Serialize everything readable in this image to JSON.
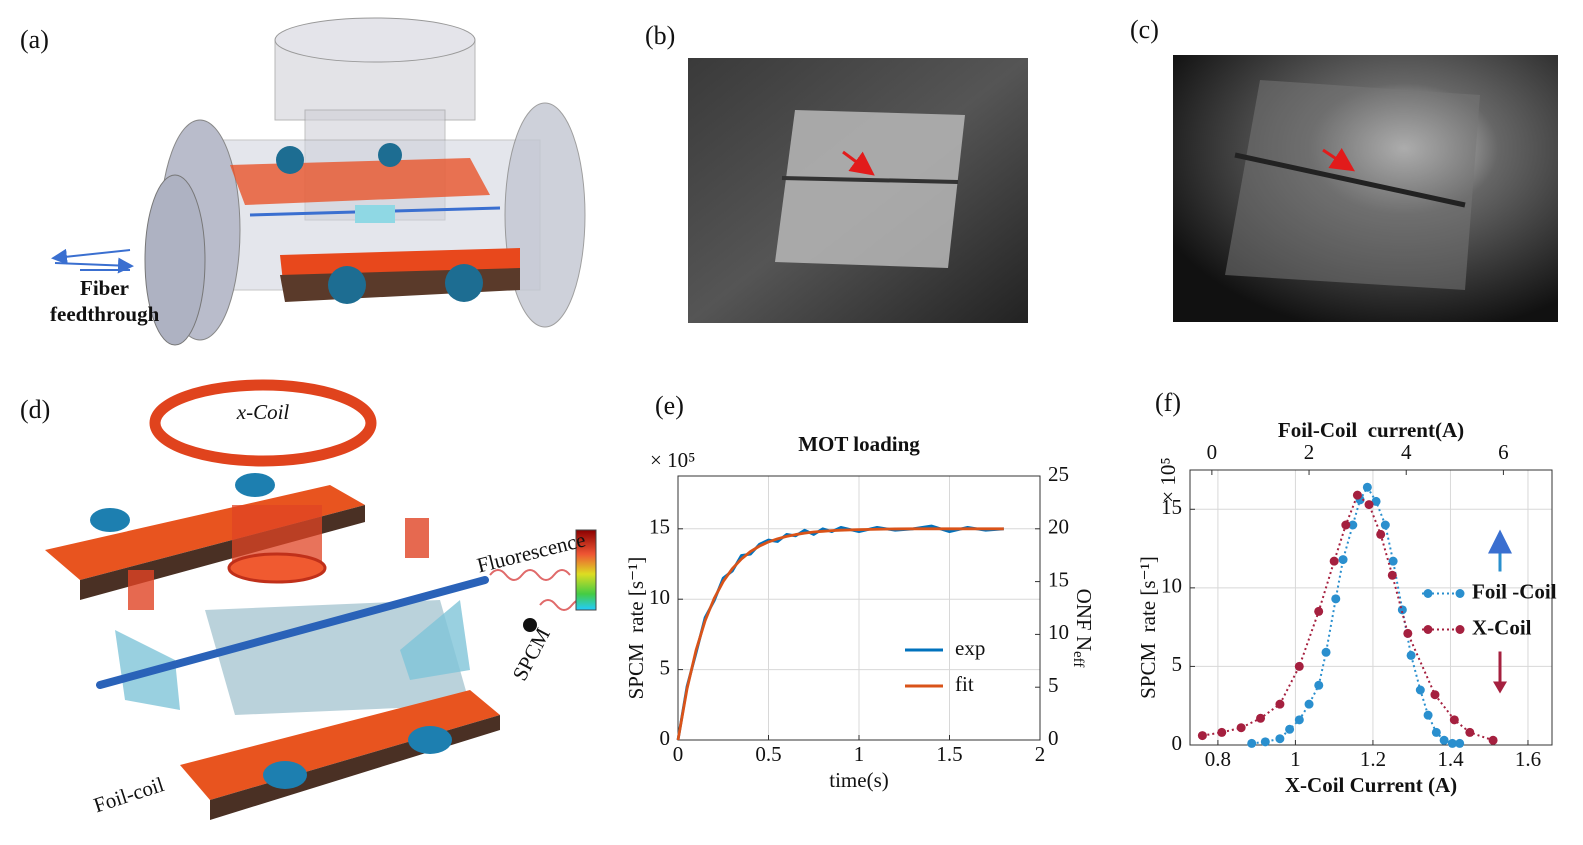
{
  "panel_labels": [
    "(a)",
    "(b)",
    "(c)",
    "(d)",
    "(e)",
    "(f)"
  ],
  "fiber_label": [
    "Fiber",
    "feedthrough"
  ],
  "coil_label": "x-Coil",
  "fluorescence_label": "Fluorescence",
  "spcm_label": "SPCM",
  "foil_label": "Foil-coil",
  "chart_data": [
    {
      "type": "line",
      "title": "MOT loading",
      "xlabel": "time(s)",
      "ylabel": "SPCM  rate [s⁻¹]",
      "multiplier": "× 10⁵",
      "y2label": "ONF N",
      "y2label_sub": "eff",
      "x": [
        0,
        0.05,
        0.1,
        0.15,
        0.2,
        0.25,
        0.3,
        0.35,
        0.4,
        0.45,
        0.5,
        0.55,
        0.6,
        0.65,
        0.7,
        0.75,
        0.8,
        0.85,
        0.9,
        1.0,
        1.1,
        1.2,
        1.3,
        1.4,
        1.5,
        1.6,
        1.7,
        1.8
      ],
      "series": [
        {
          "name": "exp",
          "color": "#0072bd",
          "values": [
            0,
            3.8,
            6.2,
            8.7,
            9.9,
            11.5,
            12.0,
            13.1,
            13.2,
            13.9,
            14.2,
            14.1,
            14.6,
            14.5,
            14.9,
            14.6,
            15.0,
            14.8,
            15.1,
            14.8,
            15.1,
            14.9,
            15.0,
            15.2,
            14.8,
            15.1,
            14.9,
            15.0
          ]
        },
        {
          "name": "fit",
          "color": "#d95319",
          "values": [
            0,
            3.64,
            6.39,
            8.48,
            10.06,
            11.26,
            12.17,
            12.85,
            13.38,
            13.77,
            14.07,
            14.29,
            14.46,
            14.59,
            14.69,
            14.77,
            14.82,
            14.87,
            14.9,
            14.94,
            14.97,
            14.99,
            15.0,
            15.0,
            15.0,
            15.0,
            15.0,
            15.0
          ]
        }
      ],
      "xlim": [
        0,
        2
      ],
      "xticks": [
        0,
        0.5,
        1,
        1.5,
        2
      ],
      "ylim": [
        0,
        18.75
      ],
      "yticks": [
        0,
        5,
        10,
        15
      ],
      "y2lim": [
        0,
        25
      ],
      "y2ticks": [
        0,
        5,
        10,
        15,
        20,
        25
      ],
      "grid": true,
      "legend": "lower right"
    },
    {
      "type": "line",
      "xlabel": "X-Coil Current (A)",
      "x2label": "Foil-Coil  current(A)",
      "ylabel": "SPCM  rate [s⁻¹]",
      "multiplier": "× 10⁵",
      "series": [
        {
          "name": "Foil -Coil",
          "color": "#2a8fce",
          "axis": "x2",
          "x": [
            0.82,
            1.1,
            1.4,
            1.6,
            1.8,
            2.0,
            2.2,
            2.35,
            2.55,
            2.7,
            2.9,
            3.05,
            3.2,
            3.38,
            3.57,
            3.73,
            3.92,
            4.1,
            4.29,
            4.45,
            4.62,
            4.78,
            4.95,
            5.1
          ],
          "values": [
            0.1,
            0.2,
            0.4,
            1.0,
            1.6,
            2.6,
            3.8,
            5.9,
            9.3,
            11.8,
            14.0,
            15.6,
            16.4,
            15.5,
            14.0,
            11.7,
            8.6,
            5.7,
            3.5,
            1.9,
            0.8,
            0.3,
            0.1,
            0.1
          ]
        },
        {
          "name": "X-Coil",
          "color": "#a5203f",
          "x": [
            0.76,
            0.81,
            0.86,
            0.91,
            0.96,
            1.01,
            1.06,
            1.1,
            1.13,
            1.16,
            1.19,
            1.22,
            1.25,
            1.29,
            1.36,
            1.41,
            1.45,
            1.51
          ],
          "values": [
            0.6,
            0.8,
            1.1,
            1.7,
            2.6,
            5.0,
            8.5,
            11.7,
            14.0,
            15.9,
            15.3,
            13.4,
            10.8,
            7.1,
            3.2,
            1.6,
            0.8,
            0.3
          ]
        }
      ],
      "xlim": [
        0.728,
        1.662
      ],
      "xticks": [
        0.8,
        1,
        1.2,
        1.4,
        1.6
      ],
      "x2lim": [
        -0.45,
        7
      ],
      "x2ticks": [
        0,
        2,
        4,
        6
      ],
      "ylim": [
        0,
        17.5
      ],
      "yticks": [
        0,
        5,
        10,
        15
      ],
      "grid": true,
      "markers": true,
      "linestyle": "dotted",
      "legend": "center right"
    }
  ]
}
